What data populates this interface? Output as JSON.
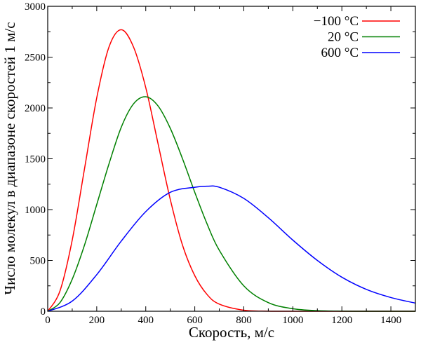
{
  "chart_data": {
    "type": "line",
    "title": "",
    "xlabel": "Скорость, м/с",
    "ylabel": "Число молекул в диапазоне скоростей 1 м/с",
    "xlim": [
      0,
      1500
    ],
    "ylim": [
      0,
      3000
    ],
    "xticks": [
      "0",
      "200",
      "400",
      "600",
      "800",
      "1000",
      "1200",
      "1400"
    ],
    "yticks": [
      "0",
      "500",
      "1000",
      "1500",
      "2000",
      "2500",
      "3000"
    ],
    "legend_position": "top-right",
    "series": [
      {
        "name": "−100 °C",
        "color": "#ff0000",
        "peak_x": 300,
        "peak_y": 2770,
        "x": [
          0,
          50,
          100,
          150,
          200,
          250,
          300,
          350,
          400,
          450,
          500,
          550,
          600,
          650,
          700,
          800,
          900,
          1000,
          1100,
          1200,
          1300,
          1400,
          1500
        ],
        "y": [
          0,
          200,
          700,
          1400,
          2100,
          2600,
          2770,
          2600,
          2200,
          1650,
          1100,
          650,
          350,
          165,
          70,
          10,
          1,
          0,
          0,
          0,
          0,
          0,
          0
        ]
      },
      {
        "name": "20 °C",
        "color": "#008000",
        "peak_x": 390,
        "peak_y": 2120,
        "x": [
          0,
          50,
          100,
          150,
          200,
          250,
          300,
          350,
          400,
          450,
          500,
          550,
          600,
          650,
          700,
          800,
          900,
          1000,
          1100,
          1200,
          1300,
          1400,
          1500
        ],
        "y": [
          0,
          85,
          315,
          650,
          1050,
          1450,
          1810,
          2040,
          2110,
          2020,
          1800,
          1500,
          1170,
          860,
          600,
          250,
          85,
          25,
          6,
          1,
          0,
          0,
          0
        ]
      },
      {
        "name": "600 °C",
        "color": "#0000ff",
        "peak_x": 675,
        "peak_y": 1230,
        "x": [
          0,
          100,
          200,
          300,
          400,
          500,
          600,
          650,
          700,
          800,
          900,
          1000,
          1100,
          1200,
          1300,
          1400,
          1500
        ],
        "y": [
          0,
          100,
          360,
          690,
          980,
          1170,
          1220,
          1230,
          1220,
          1110,
          920,
          700,
          500,
          335,
          215,
          135,
          80
        ]
      }
    ]
  }
}
